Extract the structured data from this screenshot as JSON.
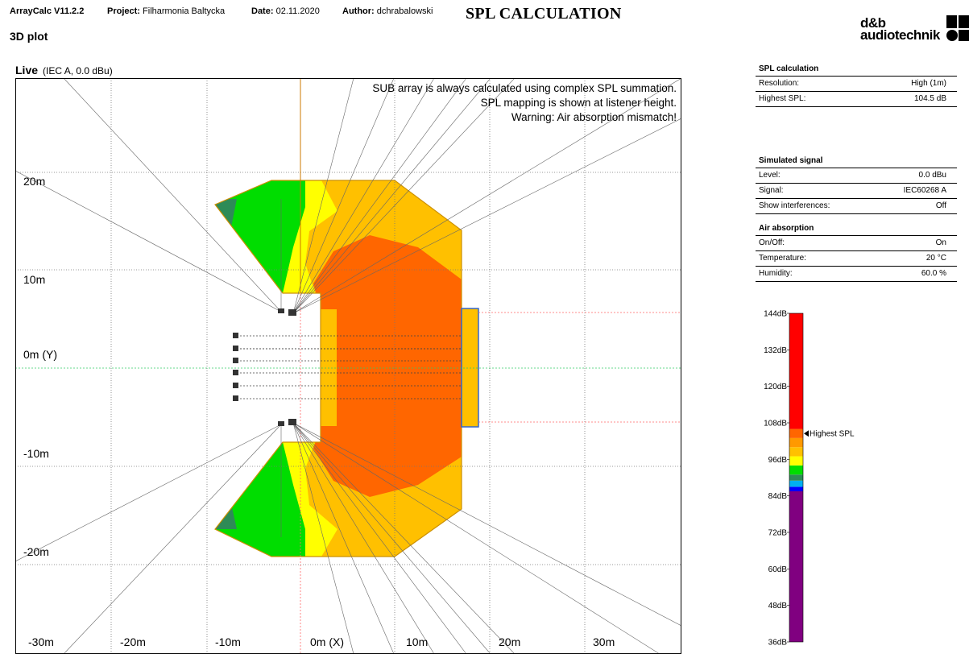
{
  "header": {
    "app_version": "ArrayCalc V11.2.2",
    "project_label": "Project:",
    "project_value": "Filharmonia Baltycka",
    "date_label": "Date:",
    "date_value": "02.11.2020",
    "author_label": "Author:",
    "author_value": "dchrabalowski",
    "main_title": "SPL CALCULATION",
    "subtitle": "3D plot",
    "logo_line1": "d&b",
    "logo_line2": "audiotechnik"
  },
  "plot": {
    "mode": "Live",
    "mode_info": "(IEC A, 0.0 dBu)",
    "notes": [
      "SUB array is always calculated using complex SPL summation.",
      "SPL mapping is shown at listener height.",
      "Warning: Air absorption mismatch!"
    ],
    "x_ticks": [
      "-30m",
      "-20m",
      "-10m",
      "0m (X)",
      "10m",
      "20m",
      "30m"
    ],
    "y_ticks": [
      "20m",
      "10m",
      "0m (Y)",
      "-10m",
      "-20m"
    ],
    "colors": {
      "red_orange": "#ff6600",
      "orange": "#ffc000",
      "yellow": "#ffff00",
      "green": "#00dd00",
      "teal": "#2e8b57",
      "outline": "#cc9000",
      "stage": "#ffc000",
      "stage_border": "#3366cc"
    }
  },
  "spl_calc": {
    "title": "SPL calculation",
    "rows": [
      {
        "label": "Resolution:",
        "value": "High (1m)"
      },
      {
        "label": "Highest SPL:",
        "value": "104.5 dB"
      }
    ]
  },
  "simulated_signal": {
    "title": "Simulated signal",
    "rows": [
      {
        "label": "Level:",
        "value": "0.0 dBu"
      },
      {
        "label": "Signal:",
        "value": "IEC60268 A"
      },
      {
        "label": "Show interferences:",
        "value": "Off"
      }
    ]
  },
  "air_absorption": {
    "title": "Air absorption",
    "rows": [
      {
        "label": "On/Off:",
        "value": "On"
      },
      {
        "label": "Temperature:",
        "value": "20 °C"
      },
      {
        "label": "Humidity:",
        "value": "60.0 %"
      }
    ]
  },
  "scale": {
    "labels": [
      "144dB",
      "132dB",
      "120dB",
      "108dB",
      "96dB",
      "84dB",
      "72dB",
      "60dB",
      "48dB",
      "36dB"
    ],
    "highest_label": "Highest SPL",
    "highest_value_db": 104.5,
    "bands": [
      {
        "from": 36,
        "to": 85.5,
        "color": "#800080"
      },
      {
        "from": 85.5,
        "to": 87,
        "color": "#0000ff"
      },
      {
        "from": 87,
        "to": 89,
        "color": "#00b0f0"
      },
      {
        "from": 89,
        "to": 91,
        "color": "#2e8b57"
      },
      {
        "from": 91,
        "to": 94,
        "color": "#00dd00"
      },
      {
        "from": 94,
        "to": 97,
        "color": "#ffff00"
      },
      {
        "from": 97,
        "to": 100,
        "color": "#ffc000"
      },
      {
        "from": 100,
        "to": 103,
        "color": "#ff9900"
      },
      {
        "from": 103,
        "to": 106,
        "color": "#ff6600"
      },
      {
        "from": 106,
        "to": 144,
        "color": "#ff0000"
      }
    ]
  }
}
